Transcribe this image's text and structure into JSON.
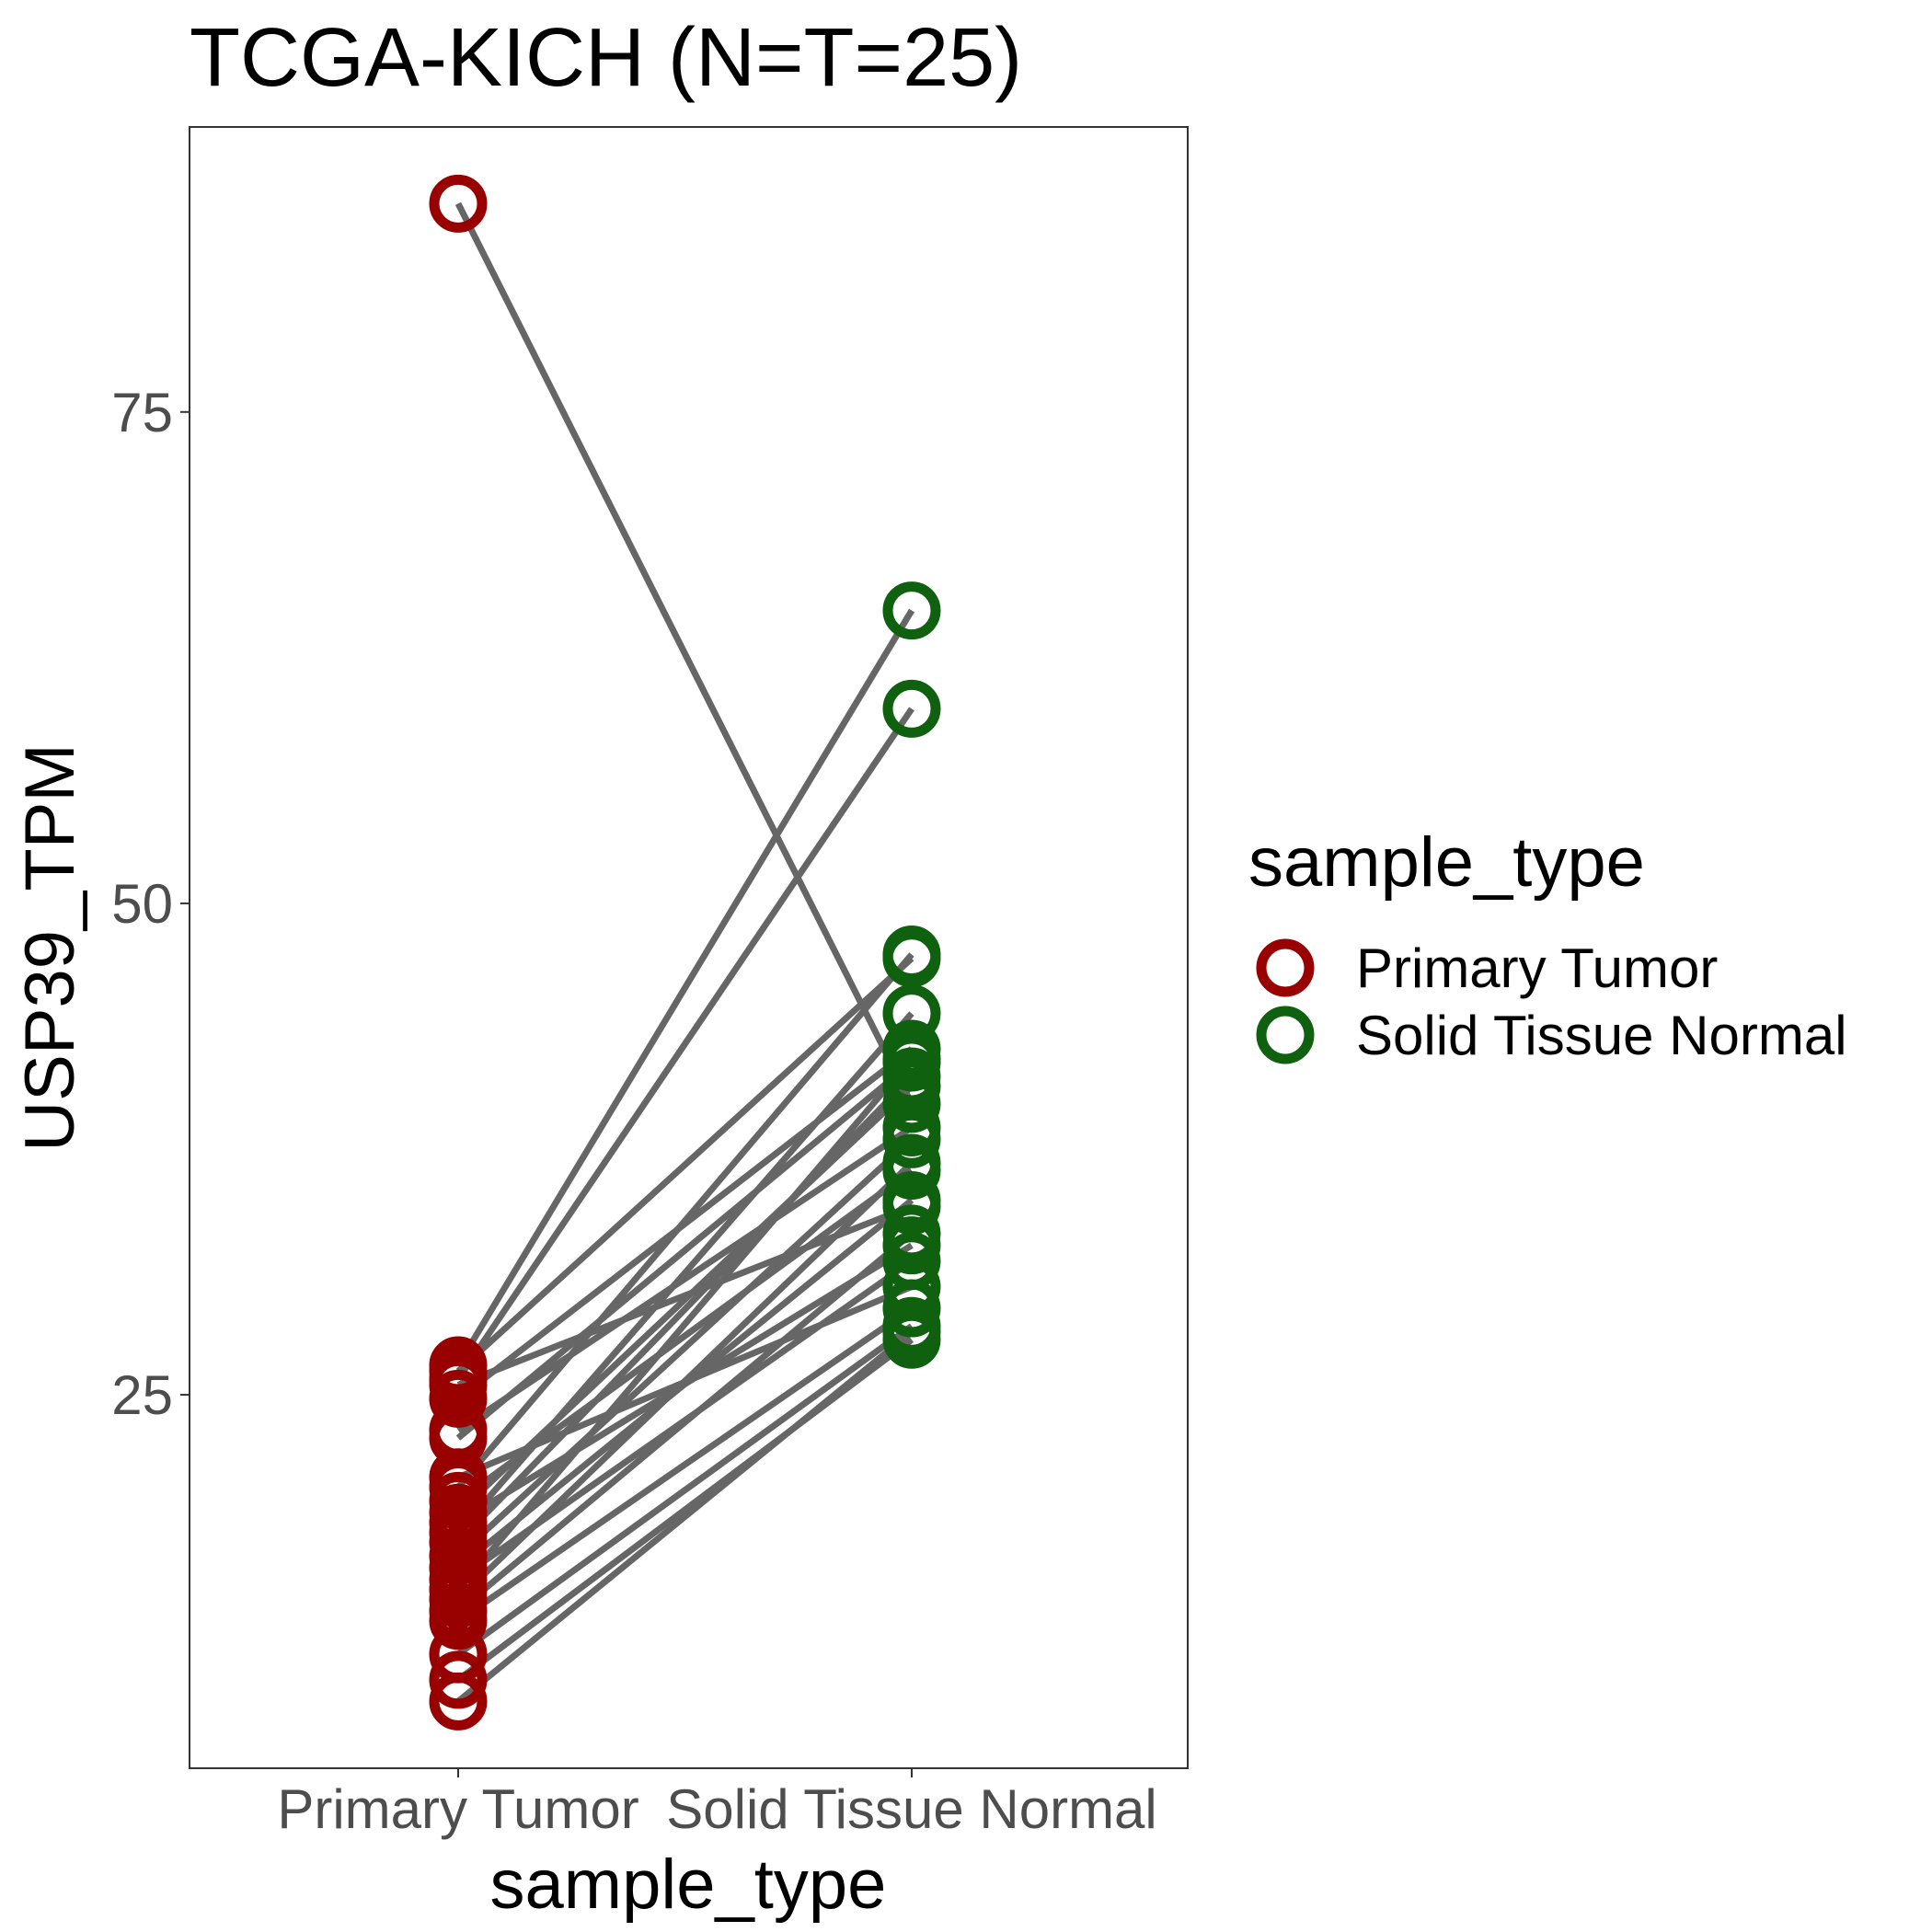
{
  "chart_data": {
    "type": "line",
    "title": "TCGA-KICH  (N=T=25)",
    "xlabel": "sample_type",
    "ylabel": "USP39_TPM",
    "categories": [
      "Primary Tumor",
      "Solid Tissue Normal"
    ],
    "ylim": [
      6,
      89.5
    ],
    "yticks": [
      25,
      50,
      75
    ],
    "grid": false,
    "legend": {
      "title": "sample_type",
      "position": "right",
      "entries": [
        {
          "label": "Primary Tumor",
          "color": "#990000"
        },
        {
          "label": "Solid Tissue Normal",
          "color": "#0f600f"
        }
      ]
    },
    "line_color": "#666666",
    "pairs": [
      {
        "tumor": 85.6,
        "normal": 39.8
      },
      {
        "tumor": 26.5,
        "normal": 64.9
      },
      {
        "tumor": 25.8,
        "normal": 59.9
      },
      {
        "tumor": 26.2,
        "normal": 47.2
      },
      {
        "tumor": 25.5,
        "normal": 34.6
      },
      {
        "tumor": 24.8,
        "normal": 42.6
      },
      {
        "tumor": 23.2,
        "normal": 38.6
      },
      {
        "tumor": 22.8,
        "normal": 41.9
      },
      {
        "tumor": 20.8,
        "normal": 30.5
      },
      {
        "tumor": 20.3,
        "normal": 47.4
      },
      {
        "tumor": 19.6,
        "normal": 36.4
      },
      {
        "tumor": 19.0,
        "normal": 40.7
      },
      {
        "tumor": 18.5,
        "normal": 32.6
      },
      {
        "tumor": 18.0,
        "normal": 44.4
      },
      {
        "tumor": 17.5,
        "normal": 41.2
      },
      {
        "tumor": 16.8,
        "normal": 38.0
      },
      {
        "tumor": 16.2,
        "normal": 34.9
      },
      {
        "tumor": 15.6,
        "normal": 31.8
      },
      {
        "tumor": 15.1,
        "normal": 42.1
      },
      {
        "tumor": 14.6,
        "normal": 36.8
      },
      {
        "tumor": 14.0,
        "normal": 33.2
      },
      {
        "tumor": 13.5,
        "normal": 29.4
      },
      {
        "tumor": 11.8,
        "normal": 28.5
      },
      {
        "tumor": 10.5,
        "normal": 27.8
      },
      {
        "tumor": 9.4,
        "normal": 28.2
      }
    ]
  }
}
